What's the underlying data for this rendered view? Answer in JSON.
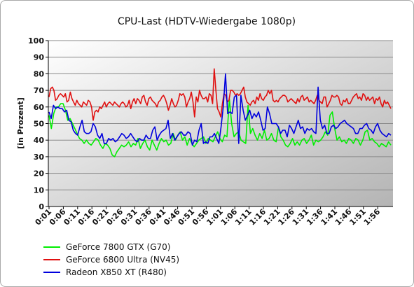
{
  "chart_data": {
    "type": "line",
    "title": "CPU-Last (HDTV-Wiedergabe 1080p)",
    "ylabel": "[in Prozent]",
    "xlabel": "",
    "ylim": [
      0,
      100
    ],
    "yticks": [
      0,
      10,
      20,
      30,
      40,
      50,
      60,
      70,
      80,
      90,
      100
    ],
    "xticks": [
      "0:01",
      "0:06",
      "0:11",
      "0:16",
      "0:21",
      "0:26",
      "0:31",
      "0:36",
      "0:41",
      "0:46",
      "0:51",
      "0:56",
      "1:01",
      "1:06",
      "1:11",
      "1:16",
      "1:21",
      "1:26",
      "1:31",
      "1:36",
      "1:41",
      "1:46",
      "1:51",
      "1:56"
    ],
    "grid": true,
    "legend_position": "bottom-left",
    "series": [
      {
        "name": "GeForce 7800 GTX (G70)",
        "color": "#00ee00",
        "values": [
          55,
          47,
          56,
          60,
          60,
          62,
          62,
          58,
          52,
          53,
          50,
          47,
          44,
          41,
          40,
          38,
          40,
          38,
          37,
          39,
          41,
          40,
          37,
          35,
          38,
          37,
          35,
          31,
          30,
          33,
          35,
          37,
          36,
          37,
          39,
          36,
          38,
          37,
          41,
          35,
          38,
          40,
          36,
          34,
          40,
          37,
          34,
          38,
          41,
          39,
          40,
          37,
          38,
          44,
          40,
          43,
          45,
          40,
          42,
          37,
          41,
          38,
          36,
          38,
          40,
          41,
          42,
          38,
          41,
          40,
          39,
          42,
          45,
          41,
          39,
          43,
          42,
          65,
          50,
          42,
          44,
          45,
          40,
          39,
          38,
          61,
          44,
          47,
          43,
          40,
          44,
          41,
          46,
          40,
          41,
          44,
          40,
          39,
          48,
          42,
          40,
          37,
          36,
          38,
          41,
          37,
          39,
          37,
          40,
          41,
          38,
          40,
          43,
          37,
          40,
          39,
          40,
          42,
          45,
          43,
          55,
          57,
          47,
          40,
          42,
          39,
          40,
          38,
          41,
          40,
          38,
          41,
          40,
          37,
          40,
          45,
          46,
          40,
          41,
          39,
          38,
          36,
          38,
          37,
          36,
          39,
          37
        ]
      },
      {
        "name": "GeForce 6800 Ultra (NV45)",
        "color": "#e01010",
        "values": [
          66,
          71,
          72,
          70,
          64,
          65,
          67,
          68,
          67,
          66,
          68,
          63,
          64,
          69,
          65,
          63,
          61,
          64,
          62,
          61,
          60,
          63,
          62,
          61,
          64,
          63,
          60,
          52,
          57,
          58,
          57,
          60,
          59,
          61,
          63,
          60,
          62,
          63,
          62,
          61,
          63,
          62,
          61,
          60,
          62,
          63,
          62,
          60,
          61,
          64,
          59,
          63,
          65,
          62,
          65,
          64,
          62,
          66,
          67,
          63,
          61,
          65,
          66,
          64,
          63,
          62,
          60,
          63,
          64,
          66,
          67,
          65,
          62,
          58,
          61,
          65,
          62,
          60,
          61,
          64,
          68,
          67,
          68,
          66,
          60,
          63,
          65,
          69,
          63,
          54,
          66,
          63,
          70,
          67,
          65,
          65,
          66,
          63,
          68,
          67,
          62,
          83,
          70,
          59,
          57,
          54,
          62,
          68,
          67,
          63,
          64,
          70,
          70,
          69,
          67,
          68,
          67,
          68,
          70,
          72,
          66,
          63,
          62,
          61,
          63,
          64,
          62,
          66,
          64,
          68,
          65,
          64,
          66,
          67,
          70,
          68,
          70,
          64,
          63,
          64,
          63,
          65,
          66,
          67,
          67,
          66,
          63,
          64,
          65,
          64,
          63,
          62,
          65,
          63,
          66,
          67,
          64,
          65,
          66,
          63,
          64,
          63,
          62,
          64,
          67,
          64,
          63,
          62,
          66,
          66,
          60,
          62,
          64,
          67,
          66,
          66,
          67,
          66,
          62,
          61,
          64,
          63,
          65,
          62,
          62,
          64,
          66,
          67,
          68,
          65,
          66,
          64,
          68,
          67,
          64,
          66,
          64,
          65,
          66,
          62,
          65,
          64,
          66,
          62,
          60,
          64,
          62,
          63,
          61,
          59
        ]
      },
      {
        "name": "Radeon X850 XT (R480)",
        "color": "#0000dd",
        "values": [
          57,
          53,
          61,
          59,
          60,
          59,
          59,
          57,
          58,
          52,
          51,
          46,
          44,
          43,
          48,
          52,
          45,
          44,
          44,
          45,
          50,
          48,
          43,
          41,
          44,
          38,
          38,
          41,
          40,
          41,
          39,
          40,
          42,
          44,
          43,
          41,
          42,
          44,
          42,
          40,
          39,
          41,
          40,
          40,
          43,
          41,
          41,
          46,
          48,
          40,
          43,
          45,
          46,
          47,
          52,
          41,
          44,
          40,
          42,
          44,
          45,
          43,
          43,
          45,
          44,
          37,
          40,
          39,
          46,
          50,
          38,
          39,
          38,
          42,
          42,
          44,
          41,
          38,
          48,
          60,
          80,
          56,
          57,
          56,
          66,
          67,
          38,
          67,
          58,
          52,
          55,
          58,
          53,
          56,
          54,
          57,
          52,
          46,
          47,
          60,
          56,
          50,
          50,
          50,
          48,
          44,
          46,
          46,
          42,
          49,
          47,
          44,
          48,
          52,
          47,
          48,
          44,
          47,
          46,
          47,
          45,
          44,
          72,
          52,
          47,
          49,
          44,
          44,
          48,
          49,
          47,
          48,
          50,
          51,
          52,
          50,
          49,
          48,
          47,
          44,
          44,
          47,
          47,
          49,
          50,
          47,
          46,
          44,
          48,
          50,
          46,
          44,
          43,
          42,
          44,
          43
        ]
      }
    ]
  }
}
